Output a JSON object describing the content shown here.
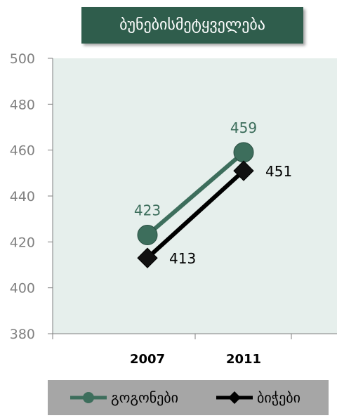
{
  "chart_data": {
    "type": "line",
    "title": "ბუნებისმეტყველება",
    "categories": [
      "2007",
      "2011"
    ],
    "ylim": [
      380,
      500
    ],
    "yticks": [
      380,
      400,
      420,
      440,
      460,
      480,
      500
    ],
    "grid": false,
    "legend_position": "bottom",
    "series": [
      {
        "name": "გოგონები",
        "values": [
          423,
          459
        ],
        "color": "#3d6e5c",
        "marker": "circle"
      },
      {
        "name": "ბიჭები",
        "values": [
          413,
          451
        ],
        "color": "#000000",
        "marker": "diamond"
      }
    ]
  },
  "colors": {
    "plot_bg": "#e6efec",
    "title_bg": "#2f5d4c",
    "legend_bg": "#a6a6a6",
    "axis_text": "#808080"
  }
}
